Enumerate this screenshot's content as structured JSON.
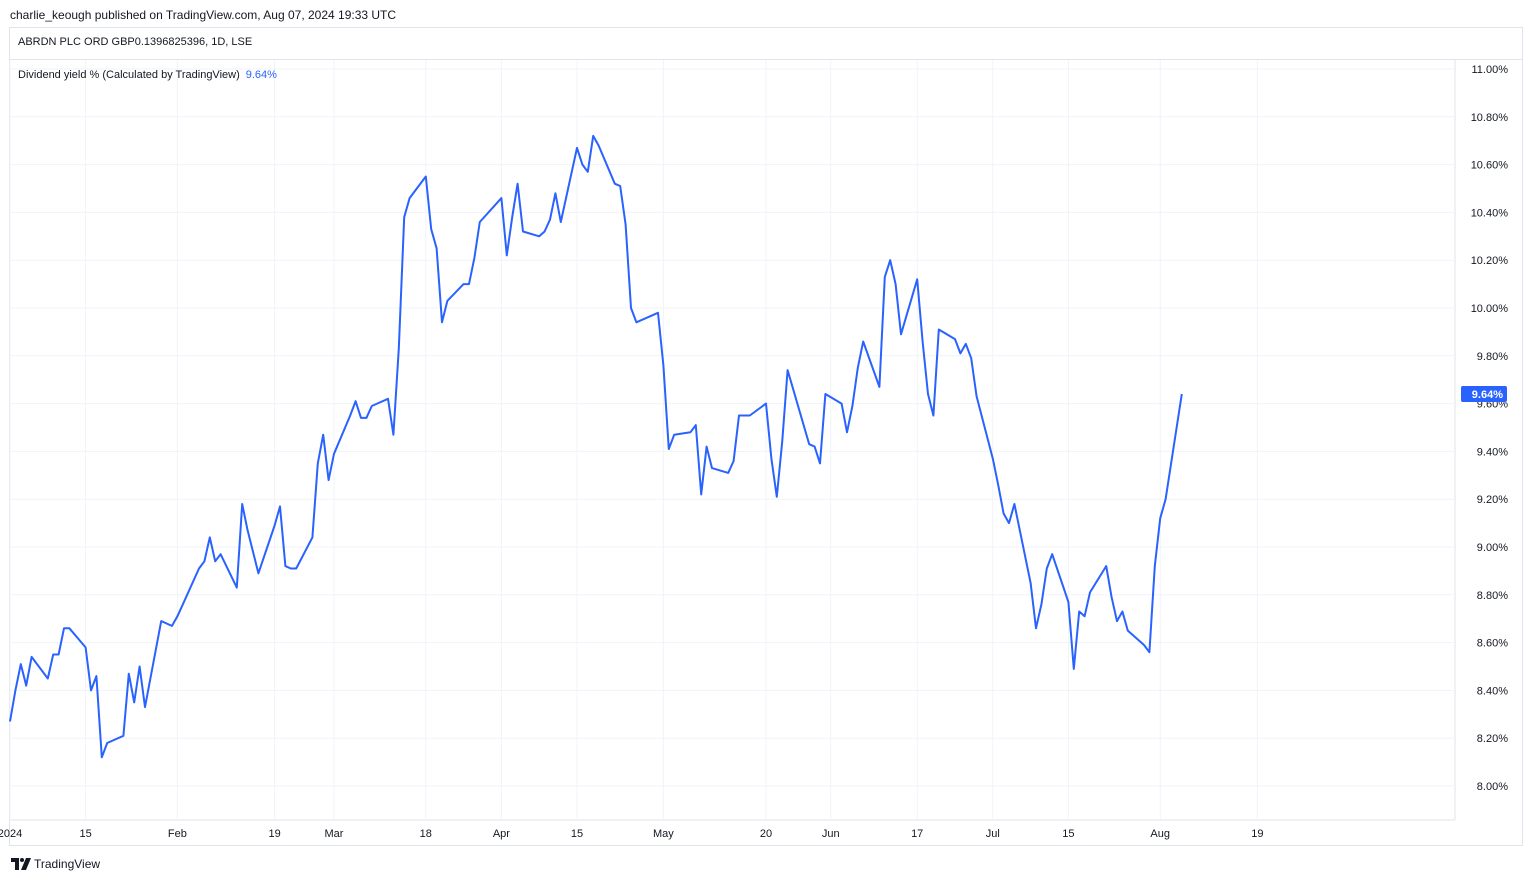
{
  "publish_line": "charlie_keough published on TradingView.com, Aug 07, 2024 19:33 UTC",
  "symbol_title": "ABRDN PLC ORD GBP0.1396825396, 1D, LSE",
  "indicator": {
    "label": "Dividend yield % (Calculated by TradingView)",
    "value": "9.64%"
  },
  "footer": {
    "brand": "TradingView",
    "logo_icon": "tradingview-logo-icon"
  },
  "colors": {
    "line": "#2962ff",
    "grid": "#f0f3fa",
    "badge": "#2962ff",
    "text": "#131722"
  },
  "chart_data": {
    "type": "line",
    "title": "",
    "ylabel": "",
    "ylim": [
      8.0,
      11.0
    ],
    "y_ticks": [
      "11.00%",
      "10.80%",
      "10.60%",
      "10.40%",
      "10.20%",
      "10.00%",
      "9.80%",
      "9.60%",
      "9.40%",
      "9.20%",
      "9.00%",
      "8.80%",
      "8.60%",
      "8.40%",
      "8.20%",
      "8.00%"
    ],
    "x_ticks": [
      "2024",
      "15",
      "Feb",
      "19",
      "Mar",
      "18",
      "Apr",
      "15",
      "May",
      "20",
      "Jun",
      "17",
      "Jul",
      "15",
      "Aug",
      "19"
    ],
    "x_tick_dates": [
      "2024-01-01",
      "2024-01-15",
      "2024-02-01",
      "2024-02-19",
      "2024-03-01",
      "2024-03-18",
      "2024-04-01",
      "2024-04-15",
      "2024-05-01",
      "2024-05-20",
      "2024-06-01",
      "2024-06-17",
      "2024-07-01",
      "2024-07-15",
      "2024-08-01",
      "2024-08-19"
    ],
    "x_range": [
      "2024-01-01",
      "2024-08-19"
    ],
    "last_value_label": "9.64%",
    "grid": true,
    "series": [
      {
        "values": [
          [
            "2024-01-01",
            8.27
          ],
          [
            "2024-01-02",
            8.4
          ],
          [
            "2024-01-03",
            8.51
          ],
          [
            "2024-01-04",
            8.42
          ],
          [
            "2024-01-05",
            8.54
          ],
          [
            "2024-01-08",
            8.45
          ],
          [
            "2024-01-09",
            8.55
          ],
          [
            "2024-01-10",
            8.55
          ],
          [
            "2024-01-11",
            8.66
          ],
          [
            "2024-01-12",
            8.66
          ],
          [
            "2024-01-15",
            8.58
          ],
          [
            "2024-01-16",
            8.4
          ],
          [
            "2024-01-17",
            8.46
          ],
          [
            "2024-01-18",
            8.12
          ],
          [
            "2024-01-19",
            8.18
          ],
          [
            "2024-01-22",
            8.21
          ],
          [
            "2024-01-23",
            8.47
          ],
          [
            "2024-01-24",
            8.35
          ],
          [
            "2024-01-25",
            8.5
          ],
          [
            "2024-01-26",
            8.33
          ],
          [
            "2024-01-29",
            8.69
          ],
          [
            "2024-01-30",
            8.68
          ],
          [
            "2024-01-31",
            8.67
          ],
          [
            "2024-02-01",
            8.71
          ],
          [
            "2024-02-02",
            8.76
          ],
          [
            "2024-02-05",
            8.91
          ],
          [
            "2024-02-06",
            8.94
          ],
          [
            "2024-02-07",
            9.04
          ],
          [
            "2024-02-08",
            8.94
          ],
          [
            "2024-02-09",
            8.97
          ],
          [
            "2024-02-12",
            8.83
          ],
          [
            "2024-02-13",
            9.18
          ],
          [
            "2024-02-14",
            9.07
          ],
          [
            "2024-02-15",
            8.98
          ],
          [
            "2024-02-16",
            8.89
          ],
          [
            "2024-02-19",
            9.09
          ],
          [
            "2024-02-20",
            9.17
          ],
          [
            "2024-02-21",
            8.92
          ],
          [
            "2024-02-22",
            8.91
          ],
          [
            "2024-02-23",
            8.91
          ],
          [
            "2024-02-26",
            9.04
          ],
          [
            "2024-02-27",
            9.35
          ],
          [
            "2024-02-28",
            9.47
          ],
          [
            "2024-02-29",
            9.28
          ],
          [
            "2024-03-01",
            9.39
          ],
          [
            "2024-03-04",
            9.55
          ],
          [
            "2024-03-05",
            9.61
          ],
          [
            "2024-03-06",
            9.54
          ],
          [
            "2024-03-07",
            9.54
          ],
          [
            "2024-03-08",
            9.59
          ],
          [
            "2024-03-11",
            9.62
          ],
          [
            "2024-03-12",
            9.47
          ],
          [
            "2024-03-13",
            9.83
          ],
          [
            "2024-03-14",
            10.38
          ],
          [
            "2024-03-15",
            10.46
          ],
          [
            "2024-03-18",
            10.55
          ],
          [
            "2024-03-19",
            10.33
          ],
          [
            "2024-03-20",
            10.25
          ],
          [
            "2024-03-21",
            9.94
          ],
          [
            "2024-03-22",
            10.03
          ],
          [
            "2024-03-25",
            10.1
          ],
          [
            "2024-03-26",
            10.1
          ],
          [
            "2024-03-27",
            10.21
          ],
          [
            "2024-03-28",
            10.36
          ],
          [
            "2024-04-01",
            10.46
          ],
          [
            "2024-04-02",
            10.22
          ],
          [
            "2024-04-03",
            10.38
          ],
          [
            "2024-04-04",
            10.52
          ],
          [
            "2024-04-05",
            10.32
          ],
          [
            "2024-04-08",
            10.3
          ],
          [
            "2024-04-09",
            10.32
          ],
          [
            "2024-04-10",
            10.37
          ],
          [
            "2024-04-11",
            10.48
          ],
          [
            "2024-04-12",
            10.36
          ],
          [
            "2024-04-15",
            10.67
          ],
          [
            "2024-04-16",
            10.6
          ],
          [
            "2024-04-17",
            10.57
          ],
          [
            "2024-04-18",
            10.72
          ],
          [
            "2024-04-19",
            10.68
          ],
          [
            "2024-04-22",
            10.52
          ],
          [
            "2024-04-23",
            10.51
          ],
          [
            "2024-04-24",
            10.35
          ],
          [
            "2024-04-25",
            10.0
          ],
          [
            "2024-04-26",
            9.94
          ],
          [
            "2024-04-29",
            9.97
          ],
          [
            "2024-04-30",
            9.98
          ],
          [
            "2024-05-01",
            9.76
          ],
          [
            "2024-05-02",
            9.41
          ],
          [
            "2024-05-03",
            9.47
          ],
          [
            "2024-05-06",
            9.48
          ],
          [
            "2024-05-07",
            9.51
          ],
          [
            "2024-05-08",
            9.22
          ],
          [
            "2024-05-09",
            9.42
          ],
          [
            "2024-05-10",
            9.33
          ],
          [
            "2024-05-13",
            9.31
          ],
          [
            "2024-05-14",
            9.36
          ],
          [
            "2024-05-15",
            9.55
          ],
          [
            "2024-05-16",
            9.55
          ],
          [
            "2024-05-17",
            9.55
          ],
          [
            "2024-05-20",
            9.6
          ],
          [
            "2024-05-21",
            9.37
          ],
          [
            "2024-05-22",
            9.21
          ],
          [
            "2024-05-23",
            9.44
          ],
          [
            "2024-05-24",
            9.74
          ],
          [
            "2024-05-28",
            9.43
          ],
          [
            "2024-05-29",
            9.42
          ],
          [
            "2024-05-30",
            9.35
          ],
          [
            "2024-05-31",
            9.64
          ],
          [
            "2024-06-03",
            9.6
          ],
          [
            "2024-06-04",
            9.48
          ],
          [
            "2024-06-05",
            9.59
          ],
          [
            "2024-06-06",
            9.75
          ],
          [
            "2024-06-07",
            9.86
          ],
          [
            "2024-06-10",
            9.67
          ],
          [
            "2024-06-11",
            10.13
          ],
          [
            "2024-06-12",
            10.2
          ],
          [
            "2024-06-13",
            10.1
          ],
          [
            "2024-06-14",
            9.89
          ],
          [
            "2024-06-17",
            10.12
          ],
          [
            "2024-06-18",
            9.86
          ],
          [
            "2024-06-19",
            9.64
          ],
          [
            "2024-06-20",
            9.55
          ],
          [
            "2024-06-21",
            9.91
          ],
          [
            "2024-06-24",
            9.87
          ],
          [
            "2024-06-25",
            9.81
          ],
          [
            "2024-06-26",
            9.85
          ],
          [
            "2024-06-27",
            9.79
          ],
          [
            "2024-06-28",
            9.63
          ],
          [
            "2024-07-01",
            9.37
          ],
          [
            "2024-07-02",
            9.26
          ],
          [
            "2024-07-03",
            9.14
          ],
          [
            "2024-07-04",
            9.1
          ],
          [
            "2024-07-05",
            9.18
          ],
          [
            "2024-07-08",
            8.85
          ],
          [
            "2024-07-09",
            8.66
          ],
          [
            "2024-07-10",
            8.76
          ],
          [
            "2024-07-11",
            8.91
          ],
          [
            "2024-07-12",
            8.97
          ],
          [
            "2024-07-15",
            8.77
          ],
          [
            "2024-07-16",
            8.49
          ],
          [
            "2024-07-17",
            8.73
          ],
          [
            "2024-07-18",
            8.71
          ],
          [
            "2024-07-19",
            8.81
          ],
          [
            "2024-07-22",
            8.92
          ],
          [
            "2024-07-23",
            8.79
          ],
          [
            "2024-07-24",
            8.69
          ],
          [
            "2024-07-25",
            8.73
          ],
          [
            "2024-07-26",
            8.65
          ],
          [
            "2024-07-29",
            8.59
          ],
          [
            "2024-07-30",
            8.56
          ],
          [
            "2024-07-31",
            8.92
          ],
          [
            "2024-08-01",
            9.12
          ],
          [
            "2024-08-02",
            9.2
          ],
          [
            "2024-08-05",
            9.64
          ]
        ]
      }
    ]
  }
}
